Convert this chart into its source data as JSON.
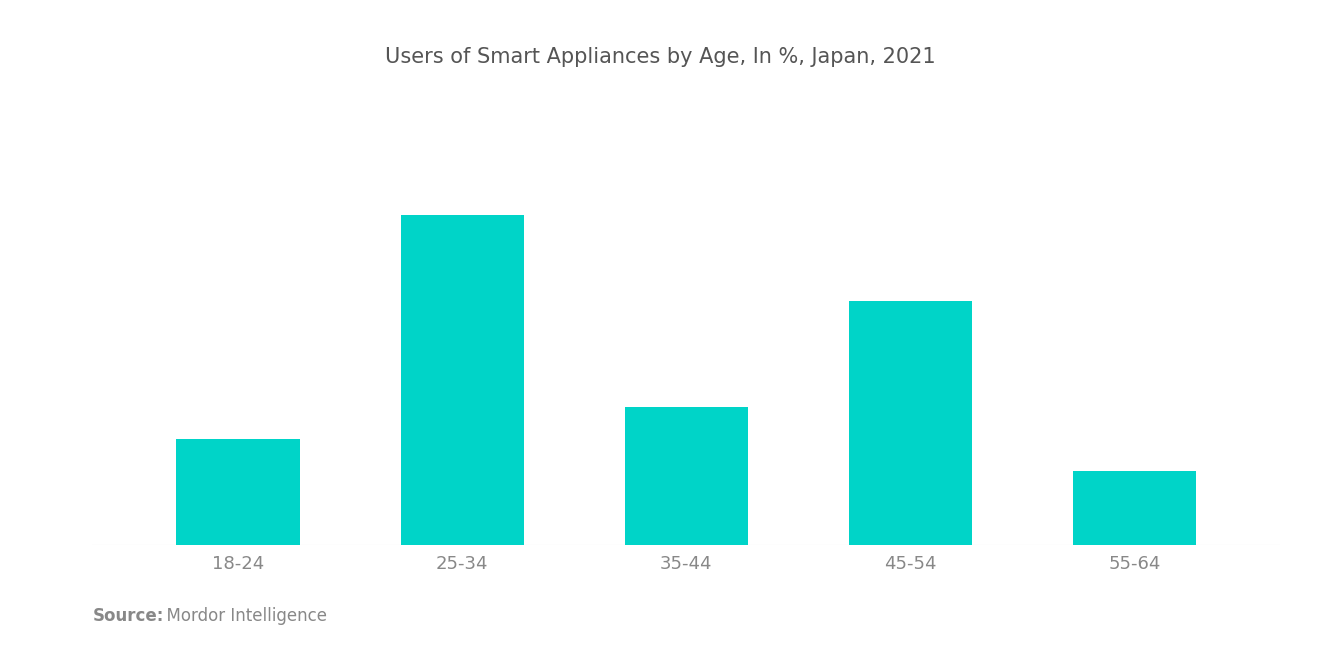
{
  "title": "Users of Smart Appliances by Age, In %, Japan, 2021",
  "categories": [
    "18-24",
    "25-34",
    "35-44",
    "45-54",
    "55-64"
  ],
  "values": [
    20,
    62,
    26,
    46,
    14
  ],
  "bar_color": "#00D4C8",
  "background_color": "#FFFFFF",
  "title_color": "#555555",
  "tick_color": "#888888",
  "source_bold": "Source:",
  "source_text": "  Mordor Intelligence",
  "source_color": "#888888",
  "title_fontsize": 15,
  "tick_fontsize": 13,
  "source_fontsize": 12,
  "bar_width": 0.55,
  "ylim": [
    0,
    80
  ]
}
